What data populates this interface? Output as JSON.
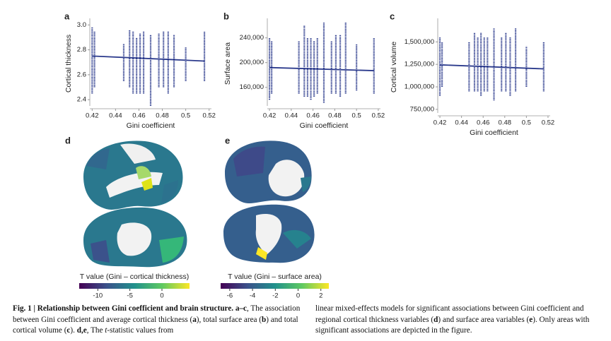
{
  "chart_data": [
    {
      "type": "scatter",
      "panel": "a",
      "xlabel": "Gini coefficient",
      "ylabel": "Cortical thickness",
      "color": "#2b3a8c",
      "xlim": [
        0.418,
        0.522
      ],
      "ylim": [
        2.35,
        3.03
      ],
      "xticks": [
        0.42,
        0.44,
        0.46,
        0.48,
        0.5,
        0.52
      ],
      "yticks": [
        {
          "value": 2.4,
          "label": "2.4"
        },
        {
          "value": 2.6,
          "label": "2.6"
        },
        {
          "value": 2.8,
          "label": "2.8"
        },
        {
          "value": 3.0,
          "label": "3.0"
        }
      ],
      "x": [
        0.42,
        0.422,
        0.447,
        0.452,
        0.455,
        0.458,
        0.461,
        0.464,
        0.47,
        0.477,
        0.481,
        0.485,
        0.49,
        0.5,
        0.516
      ],
      "low": [
        2.45,
        2.5,
        2.55,
        2.5,
        2.45,
        2.45,
        2.45,
        2.45,
        2.35,
        2.5,
        2.5,
        2.45,
        2.5,
        2.55,
        2.55
      ],
      "high": [
        2.98,
        2.95,
        2.85,
        2.96,
        2.95,
        2.9,
        2.93,
        2.95,
        2.92,
        2.93,
        2.95,
        2.95,
        2.92,
        2.82,
        2.95
      ],
      "fit": {
        "x": [
          0.42,
          0.516
        ],
        "y": [
          2.75,
          2.71
        ]
      }
    },
    {
      "type": "scatter",
      "panel": "b",
      "xlabel": "Gini coefficient",
      "ylabel": "Surface area",
      "color": "#2b3a8c",
      "xlim": [
        0.418,
        0.522
      ],
      "ylim": [
        130000,
        267000
      ],
      "xticks": [
        0.42,
        0.44,
        0.46,
        0.48,
        0.5,
        0.52
      ],
      "yticks": [
        {
          "value": 160000,
          "label": "160,000"
        },
        {
          "value": 200000,
          "label": "200,000"
        },
        {
          "value": 240000,
          "label": "240,000"
        }
      ],
      "x": [
        0.42,
        0.422,
        0.447,
        0.452,
        0.455,
        0.458,
        0.461,
        0.464,
        0.47,
        0.477,
        0.481,
        0.485,
        0.49,
        0.5,
        0.516
      ],
      "low": [
        140000,
        150000,
        150000,
        145000,
        145000,
        140000,
        145000,
        150000,
        135000,
        150000,
        150000,
        145000,
        150000,
        155000,
        150000
      ],
      "high": [
        240000,
        235000,
        235000,
        260000,
        240000,
        240000,
        235000,
        240000,
        265000,
        235000,
        245000,
        245000,
        265000,
        230000,
        240000
      ],
      "fit": {
        "x": [
          0.42,
          0.516
        ],
        "y": [
          192000,
          187000
        ]
      }
    },
    {
      "type": "scatter",
      "panel": "c",
      "xlabel": "Gini coefficient",
      "ylabel": "Cortical volume",
      "color": "#2b3a8c",
      "xlim": [
        0.418,
        0.522
      ],
      "ylim": [
        710000,
        1730000
      ],
      "xticks": [
        0.42,
        0.44,
        0.46,
        0.48,
        0.5,
        0.52
      ],
      "yticks": [
        {
          "value": 750000,
          "label": "750,000"
        },
        {
          "value": 1000000,
          "label": "1,000,000"
        },
        {
          "value": 1250000,
          "label": "1,250,000"
        },
        {
          "value": 1500000,
          "label": "1,500,000"
        }
      ],
      "x": [
        0.42,
        0.422,
        0.447,
        0.452,
        0.455,
        0.458,
        0.461,
        0.464,
        0.47,
        0.477,
        0.481,
        0.485,
        0.49,
        0.5,
        0.516
      ],
      "low": [
        900000,
        1000000,
        950000,
        950000,
        950000,
        900000,
        950000,
        950000,
        850000,
        950000,
        950000,
        900000,
        950000,
        1000000,
        950000
      ],
      "high": [
        1550000,
        1500000,
        1500000,
        1600000,
        1550000,
        1600000,
        1550000,
        1550000,
        1650000,
        1550000,
        1600000,
        1550000,
        1650000,
        1450000,
        1500000
      ],
      "fit": {
        "x": [
          0.42,
          0.516
        ],
        "y": [
          1245000,
          1200000
        ]
      }
    }
  ],
  "brains": [
    {
      "panel": "d"
    },
    {
      "panel": "e"
    }
  ],
  "colorbars": [
    {
      "label": "T value (Gini – cortical thickness)",
      "lim": [
        -12.9,
        4.3
      ],
      "ticks": [
        -10,
        -5,
        0
      ]
    },
    {
      "label": "T value (Gini – surface area)",
      "lim": [
        -6.8,
        2.7
      ],
      "ticks": [
        -6,
        -4,
        -2,
        0,
        2
      ]
    }
  ],
  "caption": {
    "left": [
      {
        "text": "Fig. 1 | Relationship between Gini coefficient and brain structure. a–c",
        "bold": true
      },
      {
        "text": ", The association between Gini coefficient and average cortical thickness ("
      },
      {
        "text": "a",
        "bold": true
      },
      {
        "text": "), total surface area ("
      },
      {
        "text": "b",
        "bold": true
      },
      {
        "text": ") and total cortical volume ("
      },
      {
        "text": "c",
        "bold": true
      },
      {
        "text": "). "
      },
      {
        "text": "d,e",
        "bold": true
      },
      {
        "text": ", The "
      },
      {
        "text": "t",
        "italic": true
      },
      {
        "text": "-statistic values from"
      }
    ],
    "right": [
      {
        "text": "linear mixed-effects models for significant associations between Gini coefficient and regional cortical thickness variables ("
      },
      {
        "text": "d",
        "bold": true
      },
      {
        "text": ") and surface area variables ("
      },
      {
        "text": "e",
        "bold": true
      },
      {
        "text": "). Only areas with significant associations are depicted in the figure."
      }
    ]
  }
}
